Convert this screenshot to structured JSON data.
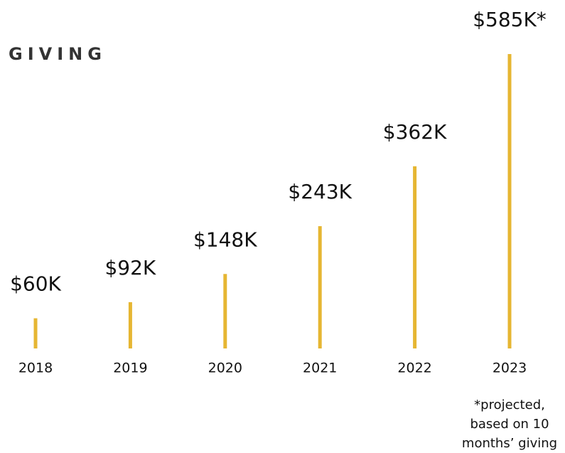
{
  "chart_data": {
    "type": "bar",
    "title": "GIVING",
    "categories": [
      "2018",
      "2019",
      "2020",
      "2021",
      "2022",
      "2023"
    ],
    "values": [
      60,
      92,
      148,
      243,
      362,
      585
    ],
    "value_labels": [
      "$60K",
      "$92K",
      "$148K",
      "$243K",
      "$362K",
      "$585K*"
    ],
    "color": "#e6b632",
    "note": [
      "*projected,",
      "based on 10",
      "months’ giving"
    ]
  }
}
